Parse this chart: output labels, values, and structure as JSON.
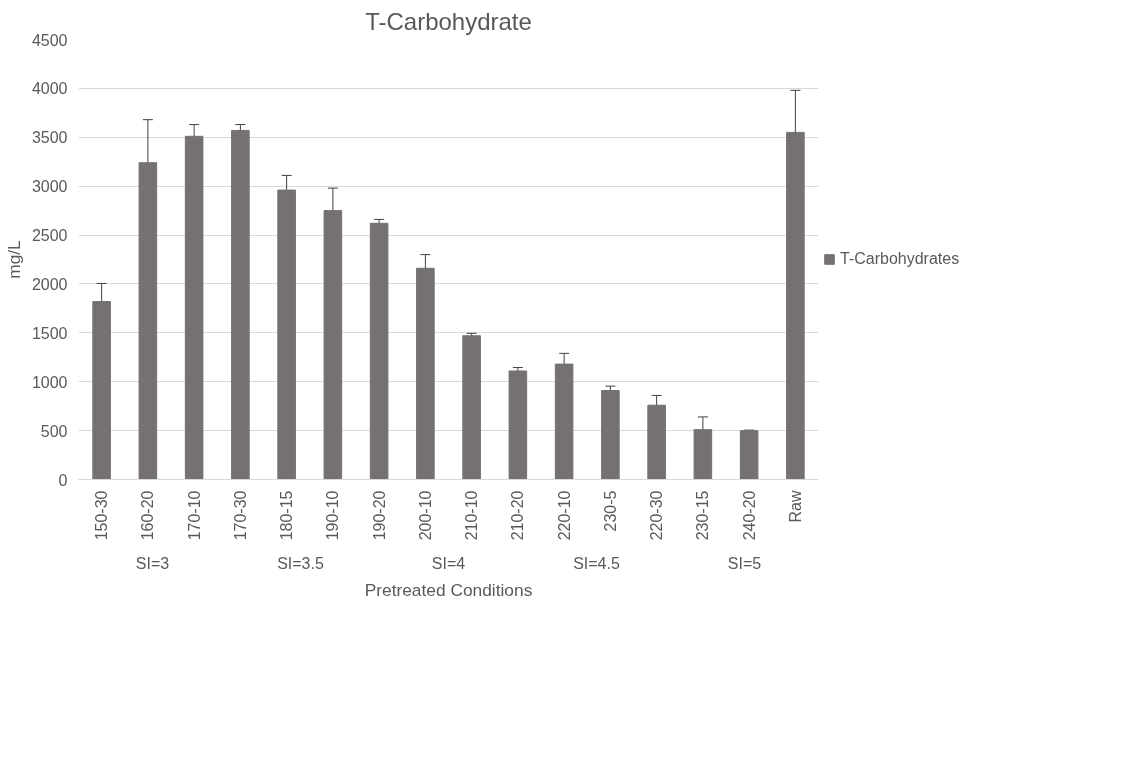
{
  "chart_data": {
    "type": "bar",
    "title": "T-Carbohydrate",
    "xlabel": "Pretreated Conditions",
    "ylabel": "mg/L",
    "categories": [
      "150-30",
      "160-20",
      "170-10",
      "170-30",
      "180-15",
      "190-10",
      "190-20",
      "200-10",
      "210-10",
      "210-20",
      "220-10",
      "230-5",
      "220-30",
      "230-15",
      "240-20",
      "Raw"
    ],
    "series": [
      {
        "name": "T-Carbohydrates",
        "color": "#767171",
        "values": [
          1820,
          3240,
          3510,
          3570,
          2960,
          2750,
          2620,
          2160,
          1470,
          1110,
          1180,
          910,
          760,
          510,
          500,
          3550
        ],
        "errors": [
          185,
          440,
          120,
          60,
          150,
          230,
          40,
          140,
          25,
          35,
          110,
          45,
          100,
          130,
          5,
          430
        ]
      }
    ],
    "annotations": [
      "SI=3",
      "SI=3.5",
      "SI=4",
      "SI=4.5",
      "SI=5"
    ],
    "ylim": [
      0,
      4500
    ],
    "yticks": [
      0,
      500,
      1000,
      1500,
      2000,
      2500,
      3000,
      3500,
      4000,
      4500
    ],
    "grid": "y",
    "legend": "right"
  }
}
